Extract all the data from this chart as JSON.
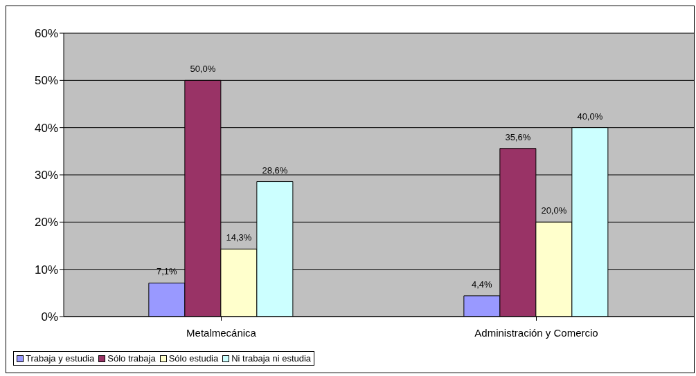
{
  "chart_data": {
    "type": "bar",
    "categories": [
      "Metalmecánica",
      "Administración y Comercio"
    ],
    "series": [
      {
        "name": "Trabaja y estudia",
        "color": "#9999ff",
        "values": [
          7.1,
          4.4
        ],
        "value_labels": [
          "7,1%",
          "4,4%"
        ]
      },
      {
        "name": "Sólo trabaja",
        "color": "#993366",
        "values": [
          50.0,
          35.6
        ],
        "value_labels": [
          "50,0%",
          "35,6%"
        ]
      },
      {
        "name": "Sólo estudia",
        "color": "#ffffcc",
        "values": [
          14.3,
          20.0
        ],
        "value_labels": [
          "14,3%",
          "20,0%"
        ]
      },
      {
        "name": "Ni trabaja ni estudia",
        "color": "#ccffff",
        "values": [
          28.6,
          40.0
        ],
        "value_labels": [
          "28,6%",
          "40,0%"
        ]
      }
    ],
    "ylim": [
      0,
      60
    ],
    "yticks": [
      {
        "value": 0,
        "label": "0%"
      },
      {
        "value": 10,
        "label": "10%"
      },
      {
        "value": 20,
        "label": "20%"
      },
      {
        "value": 30,
        "label": "30%"
      },
      {
        "value": 40,
        "label": "40%"
      },
      {
        "value": 50,
        "label": "50%"
      },
      {
        "value": 60,
        "label": "60%"
      }
    ],
    "grid": "y",
    "legend": "bottom"
  }
}
